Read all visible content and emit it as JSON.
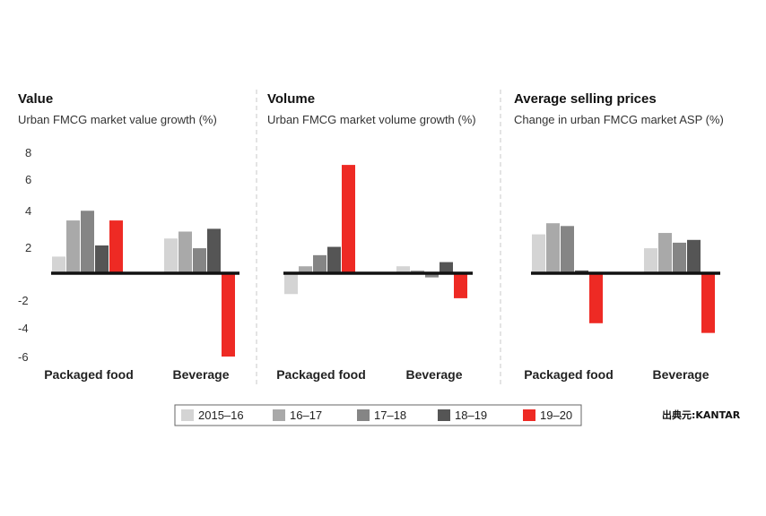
{
  "series_colors": [
    "#d4d4d4",
    "#a9a9a9",
    "#858585",
    "#555555",
    "#ee2a24"
  ],
  "legend": {
    "items": [
      "2015–16",
      "16–17",
      "17–18",
      "18–19",
      "19–20"
    ]
  },
  "source": "出典元:KANTAR",
  "chart_data": [
    {
      "type": "bar",
      "title": "Value",
      "subtitle": "Urban FMCG market value growth (%)",
      "yticks": [
        "8",
        "6",
        "4",
        "2",
        "-2",
        "-4",
        "-6"
      ],
      "ylim": [
        -6,
        8
      ],
      "categories": [
        "Packaged food",
        "Beverage"
      ],
      "series": [
        {
          "name": "2015–16",
          "values": [
            1.2,
            2.5
          ]
        },
        {
          "name": "16–17",
          "values": [
            3.8,
            3.0
          ]
        },
        {
          "name": "17–18",
          "values": [
            4.5,
            1.8
          ]
        },
        {
          "name": "18–19",
          "values": [
            2.0,
            3.2
          ]
        },
        {
          "name": "19–20",
          "values": [
            3.8,
            -6.0
          ]
        }
      ]
    },
    {
      "type": "bar",
      "title": "Volume",
      "subtitle": "Urban FMCG market volume growth (%)",
      "categories": [
        "Packaged food",
        "Beverage"
      ],
      "series": [
        {
          "name": "2015–16",
          "values": [
            -1.5,
            0.5
          ]
        },
        {
          "name": "16–17",
          "values": [
            0.5,
            0.2
          ]
        },
        {
          "name": "17–18",
          "values": [
            1.3,
            -0.3
          ]
        },
        {
          "name": "18–19",
          "values": [
            1.9,
            0.8
          ]
        },
        {
          "name": "19–20",
          "values": [
            7.8,
            -1.8
          ]
        }
      ]
    },
    {
      "type": "bar",
      "title": "Average selling prices",
      "subtitle": "Change in urban FMCG market ASP (%)",
      "categories": [
        "Packaged food",
        "Beverage"
      ],
      "series": [
        {
          "name": "2015–16",
          "values": [
            2.8,
            1.8
          ]
        },
        {
          "name": "16–17",
          "values": [
            3.6,
            2.9
          ]
        },
        {
          "name": "17–18",
          "values": [
            3.4,
            2.2
          ]
        },
        {
          "name": "18–19",
          "values": [
            0.2,
            2.4
          ]
        },
        {
          "name": "19–20",
          "values": [
            -3.6,
            -4.3
          ]
        }
      ]
    }
  ]
}
